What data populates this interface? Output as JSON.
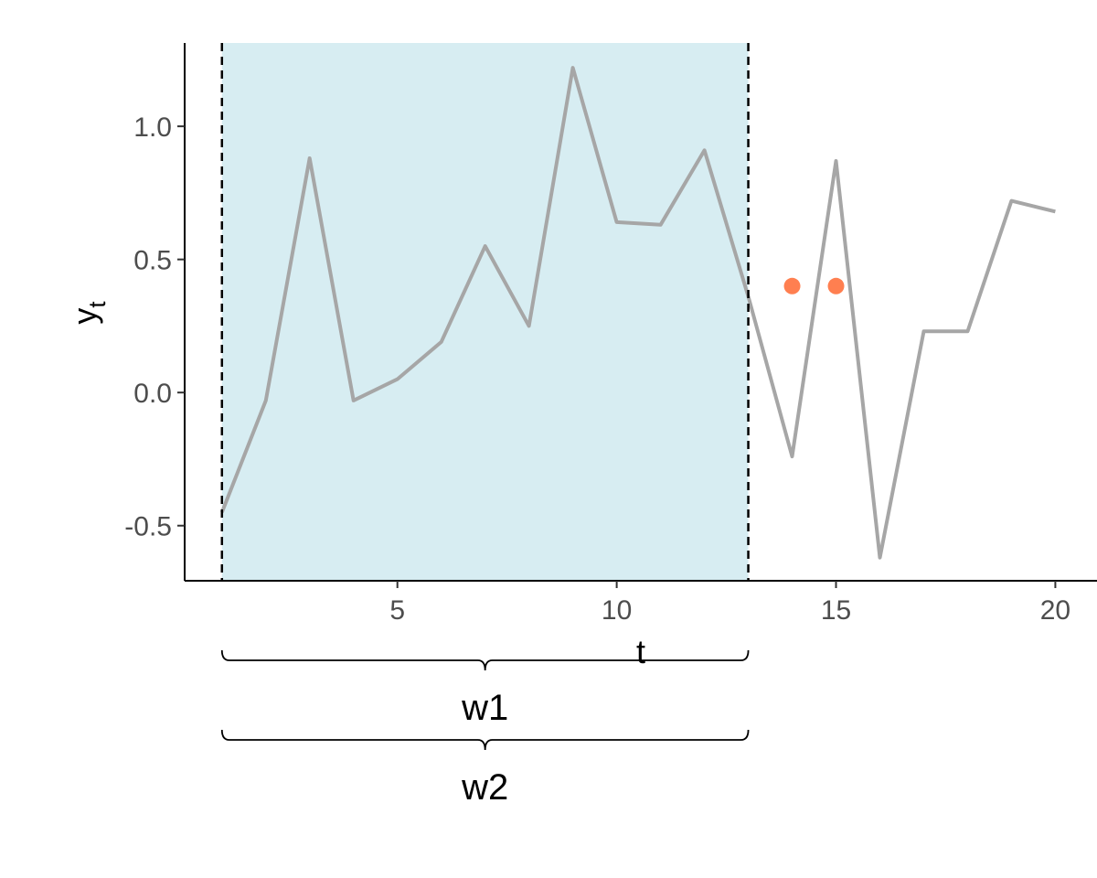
{
  "chart_data": {
    "type": "line",
    "xlabel": "t",
    "ylabel_main": "y",
    "ylabel_sub": "t",
    "xlim": [
      0.15,
      20.95
    ],
    "ylim": [
      -0.707,
      1.313
    ],
    "x_ticks": [
      5,
      10,
      15,
      20
    ],
    "x_tick_labels": [
      "5",
      "10",
      "15",
      "20"
    ],
    "y_ticks": [
      -0.5,
      0.0,
      0.5,
      1.0
    ],
    "y_tick_labels": [
      "-0.5",
      "0.0",
      "0.5",
      "1.0"
    ],
    "grid": false,
    "series": [
      {
        "x": [
          1,
          2,
          3,
          4,
          5,
          6,
          7,
          8,
          9,
          10,
          11,
          12,
          13,
          14,
          15,
          16,
          17,
          18,
          19,
          20
        ],
        "y": [
          -0.45,
          -0.03,
          0.88,
          -0.03,
          0.05,
          0.19,
          0.55,
          0.25,
          1.22,
          0.64,
          0.63,
          0.91,
          0.36,
          -0.24,
          0.87,
          -0.62,
          0.23,
          0.23,
          0.72,
          0.68
        ],
        "color": "#a6a6a6"
      }
    ],
    "highlight_points": {
      "x": [
        14,
        15
      ],
      "y": [
        0.4,
        0.4
      ],
      "color": "#ff7f50"
    },
    "shaded_window": {
      "x": [
        1,
        13
      ],
      "fill": "#d7edf2"
    },
    "window_lines": [
      1,
      13
    ],
    "braces": [
      {
        "label": "w1",
        "x": [
          1,
          13
        ]
      },
      {
        "label": "w2",
        "x": [
          1,
          13
        ]
      }
    ]
  }
}
